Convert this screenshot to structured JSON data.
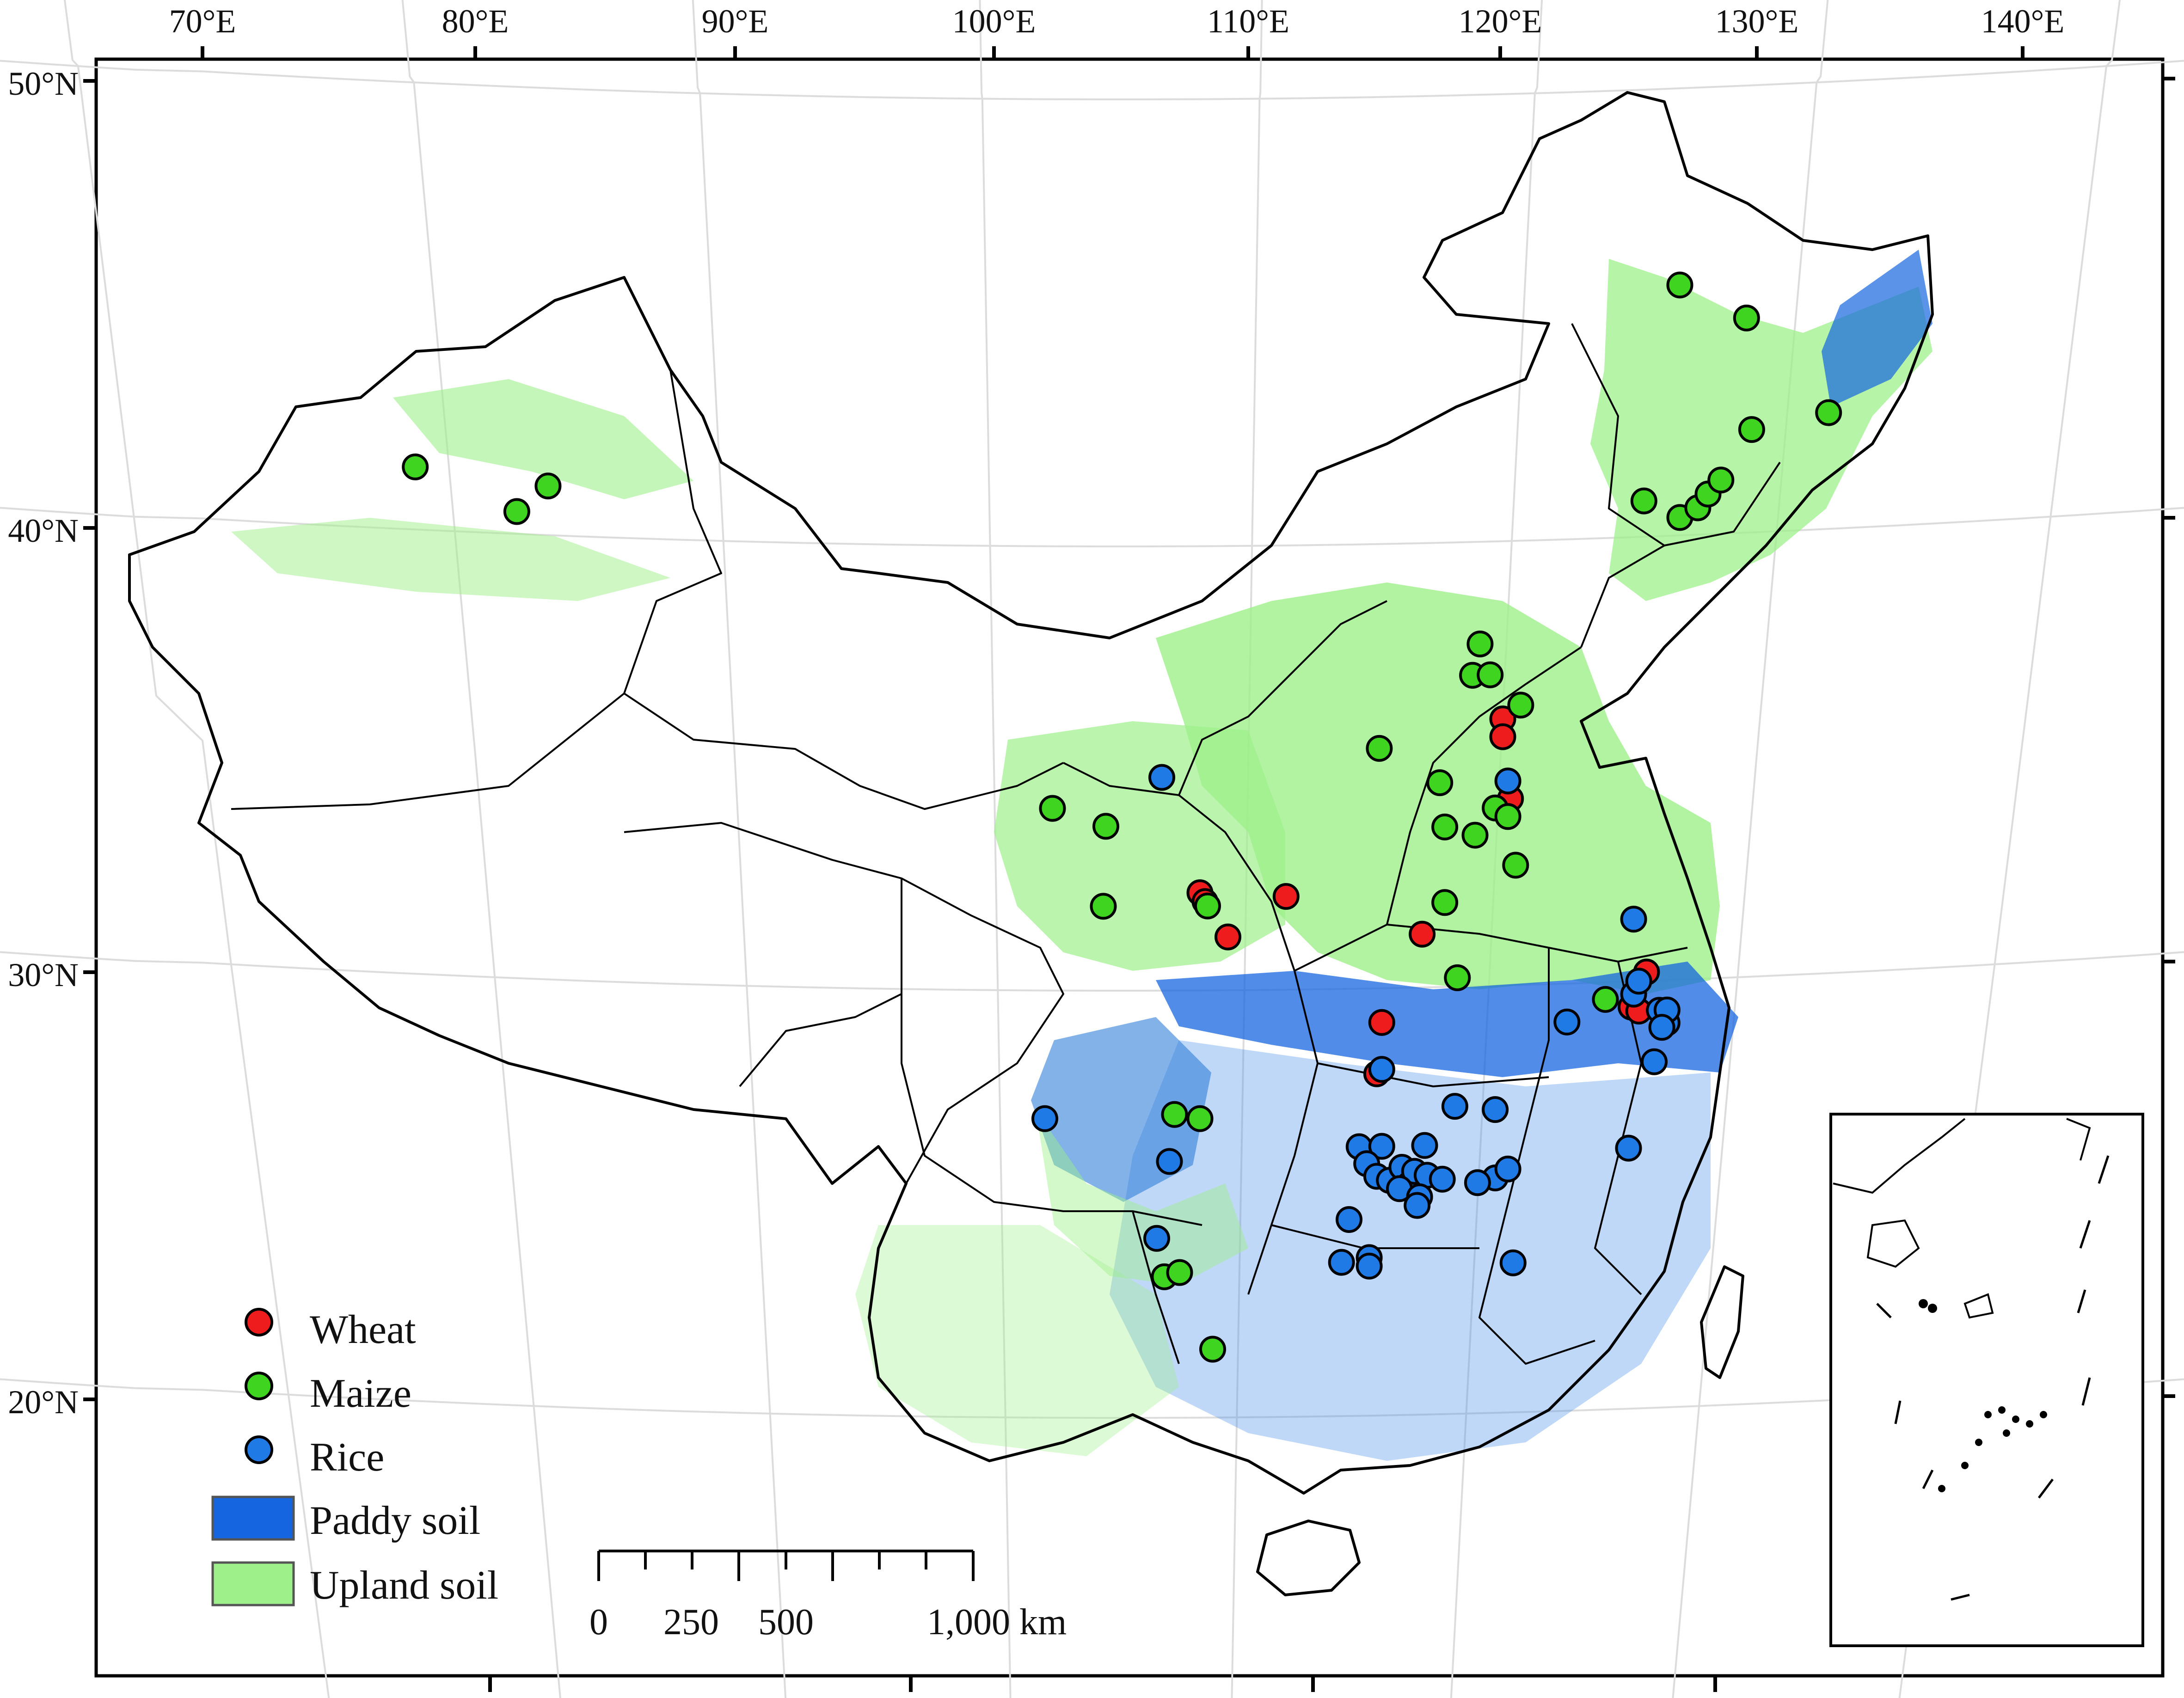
{
  "axes": {
    "top_longitudes": [
      "70°E",
      "80°E",
      "90°E",
      "100°E",
      "110°E",
      "120°E",
      "130°E",
      "140°E"
    ],
    "left_latitudes": [
      "50°N",
      "40°N",
      "30°N",
      "20°N"
    ]
  },
  "legend": {
    "items": [
      {
        "label": "Wheat",
        "symbol": "circle",
        "color": "#ee1c1c"
      },
      {
        "label": "Maize",
        "symbol": "circle",
        "color": "#3fd41f"
      },
      {
        "label": "Rice",
        "symbol": "circle",
        "color": "#1f7ae6"
      },
      {
        "label": "Paddy soil",
        "symbol": "rect",
        "color": "#1565e0"
      },
      {
        "label": "Upland soil",
        "symbol": "rect",
        "color": "#9ef08a"
      }
    ]
  },
  "scale_bar": {
    "labels": [
      "0",
      "250",
      "500",
      "1,000 km"
    ]
  },
  "colors": {
    "wheat": "#ee1c1c",
    "maize": "#3fd41f",
    "rice": "#1f7ae6",
    "paddy_soil": "#1565e0",
    "upland_soil": "#9ef08a"
  },
  "sites": {
    "wheat": [
      [
        120.1,
        36.0
      ],
      [
        120.1,
        35.6
      ],
      [
        120.4,
        34.2
      ],
      [
        108.1,
        32.2
      ],
      [
        108.3,
        32.0
      ],
      [
        109.2,
        31.2
      ],
      [
        111.5,
        32.1
      ],
      [
        116.9,
        31.2
      ],
      [
        115.3,
        29.2
      ],
      [
        115.1,
        28.0
      ],
      [
        125.7,
        30.2
      ],
      [
        125.1,
        29.4
      ],
      [
        125.4,
        29.3
      ]
    ],
    "maize": [
      [
        77.8,
        41.4
      ],
      [
        81.6,
        40.5
      ],
      [
        82.8,
        41.1
      ],
      [
        127.0,
        45.6
      ],
      [
        129.6,
        44.8
      ],
      [
        132.7,
        42.6
      ],
      [
        129.8,
        42.3
      ],
      [
        125.6,
        40.8
      ],
      [
        127.0,
        40.4
      ],
      [
        127.7,
        40.6
      ],
      [
        128.1,
        40.9
      ],
      [
        128.6,
        41.2
      ],
      [
        119.2,
        37.7
      ],
      [
        118.9,
        37.0
      ],
      [
        119.6,
        37.0
      ],
      [
        120.8,
        36.3
      ],
      [
        115.2,
        35.4
      ],
      [
        117.6,
        34.6
      ],
      [
        119.8,
        34.0
      ],
      [
        120.3,
        33.8
      ],
      [
        117.8,
        33.6
      ],
      [
        119.0,
        33.4
      ],
      [
        120.6,
        32.7
      ],
      [
        117.8,
        31.9
      ],
      [
        118.3,
        30.2
      ],
      [
        124.1,
        29.6
      ],
      [
        102.3,
        34.1
      ],
      [
        104.4,
        33.7
      ],
      [
        104.3,
        31.9
      ],
      [
        108.4,
        31.9
      ],
      [
        107.1,
        27.1
      ],
      [
        108.1,
        27.0
      ],
      [
        106.7,
        23.3
      ],
      [
        107.3,
        23.4
      ],
      [
        108.6,
        21.6
      ]
    ],
    "rice": [
      [
        106.6,
        34.8
      ],
      [
        120.3,
        34.6
      ],
      [
        125.2,
        31.4
      ],
      [
        125.2,
        29.7
      ],
      [
        125.4,
        30.0
      ],
      [
        126.2,
        29.3
      ],
      [
        126.5,
        29.0
      ],
      [
        126.5,
        29.3
      ],
      [
        126.3,
        28.9
      ],
      [
        122.6,
        29.1
      ],
      [
        126.0,
        28.1
      ],
      [
        115.3,
        28.1
      ],
      [
        118.2,
        27.2
      ],
      [
        119.8,
        27.1
      ],
      [
        102.0,
        27.0
      ],
      [
        106.9,
        26.0
      ],
      [
        114.4,
        26.3
      ],
      [
        115.3,
        26.3
      ],
      [
        117.0,
        26.3
      ],
      [
        114.7,
        25.9
      ],
      [
        115.1,
        25.6
      ],
      [
        115.6,
        25.5
      ],
      [
        116.1,
        25.8
      ],
      [
        116.4,
        25.4
      ],
      [
        116.6,
        25.7
      ],
      [
        117.1,
        25.6
      ],
      [
        117.7,
        25.5
      ],
      [
        116.0,
        25.3
      ],
      [
        116.8,
        25.1
      ],
      [
        116.7,
        24.9
      ],
      [
        119.8,
        25.5
      ],
      [
        120.3,
        25.7
      ],
      [
        119.1,
        25.4
      ],
      [
        125.0,
        26.1
      ],
      [
        114.0,
        24.6
      ],
      [
        106.4,
        24.2
      ],
      [
        113.7,
        23.6
      ],
      [
        114.8,
        23.7
      ],
      [
        114.8,
        23.5
      ],
      [
        120.5,
        23.5
      ]
    ]
  }
}
